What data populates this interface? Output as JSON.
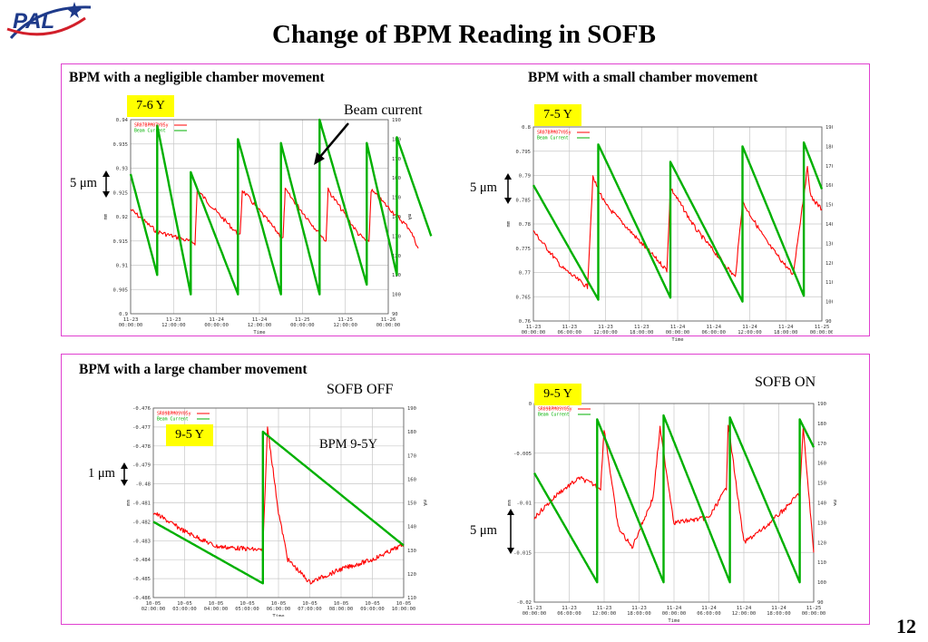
{
  "logo": {
    "text": "PAL"
  },
  "title": "Change of BPM Reading in SOFB",
  "page_number": "12",
  "panel_top": {
    "heading_left": "BPM with a negligible chamber movement",
    "heading_right": "BPM with a small chamber movement",
    "tag_left": "7-6 Y",
    "tag_right": "7-5 Y",
    "scale_left": "5 μm",
    "scale_right": "5 μm",
    "annotation": "Beam current"
  },
  "panel_bottom": {
    "heading": "BPM with a large chamber movement",
    "label_off": "SOFB OFF",
    "label_on": "SOFB ON",
    "tag_left": "9-5 Y",
    "tag_right": "9-5 Y",
    "bpm_label": "BPM 9-5Y",
    "scale_left": "1 μm",
    "scale_right": "5 μm"
  },
  "chart_data": [
    {
      "type": "line",
      "xlabel": "Time",
      "ylabel": "mm",
      "y2label": "mA",
      "x_ticks": [
        "11-23\n00:00:00",
        "11-23\n12:00:00",
        "11-24\n00:00:00",
        "11-24\n12:00:00",
        "11-25\n00:00:00",
        "11-25\n12:00:00",
        "11-26\n00:00:00"
      ],
      "y_ticks": [
        "0.9",
        "0.905",
        "0.91",
        "0.915",
        "0.92",
        "0.925",
        "0.93",
        "0.935",
        "0.94"
      ],
      "y2_ticks": [
        "90",
        "100",
        "110",
        "120",
        "130",
        "140",
        "150",
        "160",
        "170",
        "180",
        "190"
      ],
      "ylim": [
        0.9,
        0.94
      ],
      "y2lim": [
        90,
        190
      ],
      "legend": [
        "SR07BPM07Y05y",
        "Beam Current"
      ],
      "series": [
        {
          "name": "SR07BPM07Y05y",
          "color": "#ff0000",
          "x": [
            0,
            0.6,
            1.5,
            1.55,
            2.0,
            2.55,
            2.6,
            3.4,
            3.55,
            3.6,
            4.4,
            4.55,
            4.6,
            5.3,
            5.55,
            5.6,
            6.5,
            6.7
          ],
          "y": [
            0.9215,
            0.917,
            0.9146,
            0.9255,
            0.921,
            0.916,
            0.9255,
            0.917,
            0.9155,
            0.9255,
            0.9165,
            0.915,
            0.9255,
            0.9165,
            0.9145,
            0.9255,
            0.9175,
            0.9135
          ]
        },
        {
          "name": "Beam Current",
          "color": "#00b000",
          "x": [
            0,
            0.62,
            0.62,
            1.4,
            1.4,
            2.5,
            2.5,
            3.5,
            3.5,
            4.4,
            4.4,
            5.5,
            5.5,
            6.2,
            6.2,
            7.0
          ],
          "y": [
            162,
            110,
            187,
            100,
            163,
            100,
            180,
            100,
            178,
            100,
            190,
            105,
            178,
            110,
            181,
            130
          ]
        }
      ]
    },
    {
      "type": "line",
      "xlabel": "Time",
      "ylabel": "mm",
      "y2label": "mA",
      "x_ticks": [
        "11-23\n00:00:00",
        "11-23\n06:00:00",
        "11-23\n12:00:00",
        "11-23\n18:00:00",
        "11-24\n00:00:00",
        "11-24\n06:00:00",
        "11-24\n12:00:00",
        "11-24\n18:00:00",
        "11-25\n00:00:00"
      ],
      "y_ticks": [
        "0.76",
        "0.765",
        "0.77",
        "0.775",
        "0.78",
        "0.785",
        "0.79",
        "0.795",
        "0.8"
      ],
      "y2_ticks": [
        "90",
        "100",
        "110",
        "120",
        "130",
        "140",
        "150",
        "160",
        "170",
        "180",
        "190"
      ],
      "ylim": [
        0.76,
        0.8
      ],
      "y2lim": [
        90,
        190
      ],
      "legend": [
        "SR07BPM07Y05y",
        "Beam Current"
      ],
      "series": [
        {
          "name": "SR07BPM07Y05y",
          "color": "#ff0000",
          "x": [
            0,
            0.8,
            1.5,
            1.65,
            2.0,
            3.0,
            3.7,
            3.8,
            4.5,
            5.6,
            5.8,
            6.5,
            7.2,
            7.6,
            7.7,
            8.0
          ],
          "y": [
            0.7785,
            0.771,
            0.767,
            0.7895,
            0.784,
            0.776,
            0.7705,
            0.7875,
            0.779,
            0.769,
            0.7845,
            0.776,
            0.7695,
            0.7915,
            0.7855,
            0.783
          ]
        },
        {
          "name": "Beam Current",
          "color": "#00b000",
          "x": [
            0,
            1.8,
            1.8,
            3.8,
            3.8,
            5.8,
            5.8,
            7.5,
            7.5,
            8.0
          ],
          "y": [
            160,
            101,
            181,
            102,
            172,
            100,
            180,
            103,
            182,
            158
          ]
        }
      ]
    },
    {
      "type": "line",
      "xlabel": "Time",
      "ylabel": "mm",
      "y2label": "mA",
      "x_ticks": [
        "10-05\n02:00:00",
        "10-05\n03:00:00",
        "10-05\n04:00:00",
        "10-05\n05:00:00",
        "10-05\n06:00:00",
        "10-05\n07:00:00",
        "10-05\n08:00:00",
        "10-05\n09:00:00",
        "10-05\n10:00:00"
      ],
      "y_ticks": [
        "-0.486",
        "-0.485",
        "-0.484",
        "-0.483",
        "-0.482",
        "-0.481",
        "-0.48",
        "-0.479",
        "-0.478",
        "-0.477",
        "-0.476"
      ],
      "y2_ticks": [
        "110",
        "120",
        "130",
        "140",
        "150",
        "160",
        "170",
        "180",
        "190"
      ],
      "ylim": [
        -0.486,
        -0.476
      ],
      "y2lim": [
        110,
        190
      ],
      "legend": [
        "SR09BPM09Y05y",
        "Beam Current"
      ],
      "series": [
        {
          "name": "SR09BPM09Y05y",
          "color": "#ff0000",
          "x": [
            0,
            1.0,
            2.0,
            3.5,
            3.65,
            4.0,
            4.3,
            5.0,
            6.0,
            7.0,
            8.0
          ],
          "y": [
            -0.4815,
            -0.4825,
            -0.4833,
            -0.4835,
            -0.477,
            -0.4815,
            -0.484,
            -0.4852,
            -0.4845,
            -0.484,
            -0.4832
          ]
        },
        {
          "name": "Beam Current",
          "color": "#00b000",
          "x": [
            0,
            3.5,
            3.5,
            8.0
          ],
          "y": [
            142,
            116,
            180,
            132
          ]
        }
      ]
    },
    {
      "type": "line",
      "xlabel": "Time",
      "ylabel": "mm",
      "y2label": "mA",
      "x_ticks": [
        "11-23\n00:00:00",
        "11-23\n06:00:00",
        "11-23\n12:00:00",
        "11-23\n18:00:00",
        "11-24\n00:00:00",
        "11-24\n06:00:00",
        "11-24\n12:00:00",
        "11-24\n18:00:00",
        "11-25\n00:00:00"
      ],
      "y_ticks": [
        "-0.02",
        "-0.015",
        "-0.01",
        "-0.005",
        "0"
      ],
      "y2_ticks": [
        "90",
        "100",
        "110",
        "120",
        "130",
        "140",
        "150",
        "160",
        "170",
        "180",
        "190"
      ],
      "ylim": [
        -0.02,
        0
      ],
      "y2lim": [
        90,
        190
      ],
      "legend": [
        "SR09BPM09Y05y",
        "Beam Current"
      ],
      "series": [
        {
          "name": "SR09BPM09Y05y",
          "color": "#ff0000",
          "x": [
            0,
            0.7,
            1.3,
            1.9,
            2.0,
            2.4,
            2.8,
            3.4,
            3.6,
            4.0,
            5.0,
            5.5,
            5.55,
            6.0,
            6.6,
            7.2,
            7.6,
            7.7,
            8.0
          ],
          "y": [
            -0.0115,
            -0.009,
            -0.0075,
            -0.0085,
            -0.0025,
            -0.0125,
            -0.0145,
            -0.0095,
            -0.0025,
            -0.012,
            -0.0115,
            -0.0085,
            -0.002,
            -0.014,
            -0.0125,
            -0.0105,
            -0.009,
            -0.0025,
            -0.015
          ]
        },
        {
          "name": "Beam Current",
          "color": "#00b000",
          "x": [
            0,
            1.8,
            1.8,
            3.7,
            3.7,
            5.6,
            5.6,
            7.6,
            7.6,
            8.0
          ],
          "y": [
            155,
            100,
            182,
            100,
            184,
            100,
            183,
            100,
            182,
            168
          ]
        }
      ]
    }
  ]
}
